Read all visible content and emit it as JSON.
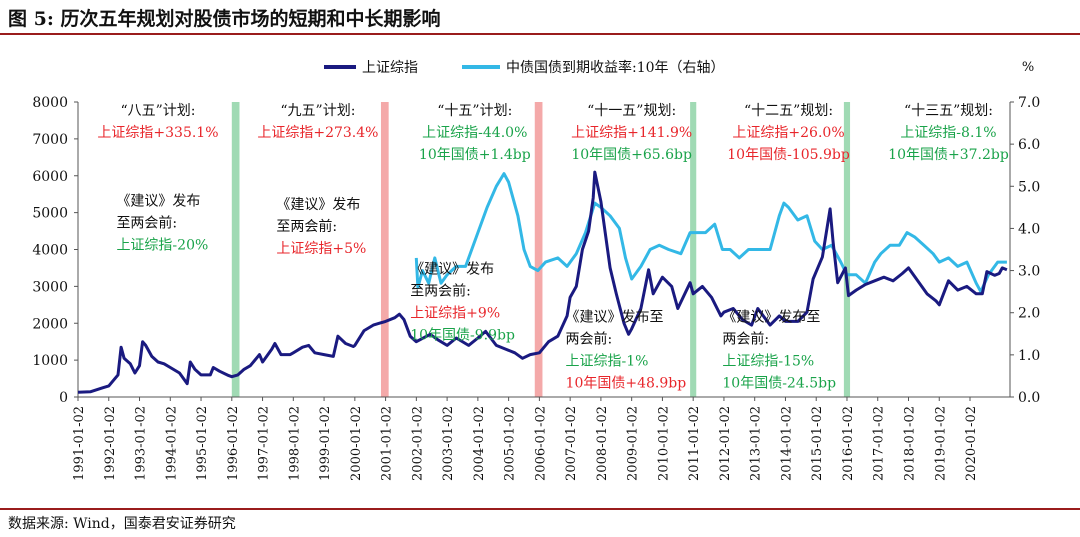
{
  "figure": {
    "title": "图 5:  历次五年规划对股债市场的短期和中长期影响",
    "source": "数据来源:  Wind，国泰君安证券研究"
  },
  "colors": {
    "sse": "#1a1a80",
    "bond": "#33b8e6",
    "band_green": "#8fd3a7",
    "band_red": "#f29a9a",
    "text_red": "#e8262b",
    "text_green": "#1aa34a",
    "text_dark": "#111111",
    "axis": "#555555",
    "rule": "#9a1c1c"
  },
  "chart_data": {
    "type": "line",
    "title": "历次五年规划对股债市场的短期和中长期影响",
    "legend": [
      "上证综指",
      "中债国债到期收益率:10年（右轴）"
    ],
    "legend_position": "top-center",
    "x_tick_labels": [
      "1991-01-02",
      "1992-01-02",
      "1993-01-02",
      "1994-01-02",
      "1995-01-02",
      "1996-01-02",
      "1997-01-02",
      "1998-01-02",
      "1999-01-02",
      "2000-01-02",
      "2001-01-02",
      "2002-01-02",
      "2003-01-02",
      "2004-01-02",
      "2005-01-02",
      "2006-01-02",
      "2007-01-02",
      "2008-01-02",
      "2009-01-02",
      "2010-01-02",
      "2011-01-02",
      "2012-01-02",
      "2013-01-02",
      "2014-01-02",
      "2015-01-02",
      "2016-01-02",
      "2017-01-02",
      "2018-01-02",
      "2019-01-02",
      "2020-01-02"
    ],
    "xlim": [
      1991.0,
      2021.3
    ],
    "y_left": {
      "lim": [
        0,
        8000
      ],
      "ticks": [
        "0",
        "1000",
        "2000",
        "3000",
        "4000",
        "5000",
        "6000",
        "7000",
        "8000"
      ]
    },
    "y_right": {
      "unit": "%",
      "lim": [
        0,
        7
      ],
      "ticks": [
        "0.0",
        "1.0",
        "2.0",
        "3.0",
        "4.0",
        "5.0",
        "6.0",
        "7.0"
      ]
    },
    "series": [
      {
        "name": "上证综指",
        "axis": "left",
        "points": [
          [
            1991.0,
            130
          ],
          [
            1991.4,
            140
          ],
          [
            1991.8,
            250
          ],
          [
            1992.0,
            300
          ],
          [
            1992.3,
            600
          ],
          [
            1992.4,
            1350
          ],
          [
            1992.5,
            1050
          ],
          [
            1992.7,
            900
          ],
          [
            1992.85,
            650
          ],
          [
            1993.0,
            850
          ],
          [
            1993.1,
            1500
          ],
          [
            1993.2,
            1400
          ],
          [
            1993.4,
            1100
          ],
          [
            1993.6,
            950
          ],
          [
            1993.8,
            900
          ],
          [
            1994.0,
            800
          ],
          [
            1994.3,
            650
          ],
          [
            1994.55,
            360
          ],
          [
            1994.65,
            950
          ],
          [
            1994.8,
            750
          ],
          [
            1995.0,
            600
          ],
          [
            1995.3,
            600
          ],
          [
            1995.4,
            800
          ],
          [
            1995.6,
            700
          ],
          [
            1995.9,
            580
          ],
          [
            1996.0,
            550
          ],
          [
            1996.2,
            600
          ],
          [
            1996.4,
            750
          ],
          [
            1996.6,
            850
          ],
          [
            1996.9,
            1150
          ],
          [
            1997.0,
            950
          ],
          [
            1997.3,
            1300
          ],
          [
            1997.4,
            1450
          ],
          [
            1997.6,
            1150
          ],
          [
            1997.9,
            1150
          ],
          [
            1998.0,
            1200
          ],
          [
            1998.3,
            1350
          ],
          [
            1998.5,
            1400
          ],
          [
            1998.7,
            1200
          ],
          [
            1999.0,
            1150
          ],
          [
            1999.3,
            1100
          ],
          [
            1999.45,
            1650
          ],
          [
            1999.7,
            1450
          ],
          [
            1999.95,
            1370
          ],
          [
            2000.0,
            1400
          ],
          [
            2000.3,
            1800
          ],
          [
            2000.6,
            1950
          ],
          [
            2001.0,
            2050
          ],
          [
            2001.3,
            2150
          ],
          [
            2001.45,
            2245
          ],
          [
            2001.6,
            2100
          ],
          [
            2001.8,
            1650
          ],
          [
            2002.0,
            1500
          ],
          [
            2002.45,
            1700
          ],
          [
            2002.7,
            1550
          ],
          [
            2003.0,
            1400
          ],
          [
            2003.3,
            1600
          ],
          [
            2003.7,
            1400
          ],
          [
            2004.0,
            1600
          ],
          [
            2004.25,
            1780
          ],
          [
            2004.6,
            1400
          ],
          [
            2004.9,
            1300
          ],
          [
            2005.2,
            1200
          ],
          [
            2005.45,
            1050
          ],
          [
            2005.7,
            1150
          ],
          [
            2006.0,
            1200
          ],
          [
            2006.3,
            1500
          ],
          [
            2006.6,
            1650
          ],
          [
            2006.9,
            2200
          ],
          [
            2007.0,
            2700
          ],
          [
            2007.2,
            3000
          ],
          [
            2007.4,
            4000
          ],
          [
            2007.6,
            4500
          ],
          [
            2007.75,
            5400
          ],
          [
            2007.8,
            6100
          ],
          [
            2008.0,
            5300
          ],
          [
            2008.3,
            3500
          ],
          [
            2008.5,
            2800
          ],
          [
            2008.75,
            2000
          ],
          [
            2008.9,
            1700
          ],
          [
            2009.0,
            1850
          ],
          [
            2009.3,
            2400
          ],
          [
            2009.55,
            3450
          ],
          [
            2009.7,
            2800
          ],
          [
            2010.0,
            3250
          ],
          [
            2010.3,
            3000
          ],
          [
            2010.5,
            2400
          ],
          [
            2010.9,
            3100
          ],
          [
            2011.0,
            2800
          ],
          [
            2011.3,
            3000
          ],
          [
            2011.6,
            2700
          ],
          [
            2011.9,
            2200
          ],
          [
            2012.0,
            2300
          ],
          [
            2012.3,
            2400
          ],
          [
            2012.6,
            2100
          ],
          [
            2012.9,
            1950
          ],
          [
            2013.1,
            2400
          ],
          [
            2013.5,
            1950
          ],
          [
            2013.8,
            2200
          ],
          [
            2014.0,
            2050
          ],
          [
            2014.4,
            2050
          ],
          [
            2014.7,
            2300
          ],
          [
            2014.9,
            3200
          ],
          [
            2015.2,
            3800
          ],
          [
            2015.45,
            5100
          ],
          [
            2015.55,
            4200
          ],
          [
            2015.7,
            3100
          ],
          [
            2015.95,
            3500
          ],
          [
            2016.05,
            2750
          ],
          [
            2016.3,
            2900
          ],
          [
            2016.6,
            3050
          ],
          [
            2016.9,
            3150
          ],
          [
            2017.2,
            3250
          ],
          [
            2017.5,
            3150
          ],
          [
            2017.8,
            3350
          ],
          [
            2018.0,
            3500
          ],
          [
            2018.3,
            3150
          ],
          [
            2018.6,
            2800
          ],
          [
            2018.9,
            2600
          ],
          [
            2019.0,
            2500
          ],
          [
            2019.3,
            3150
          ],
          [
            2019.6,
            2900
          ],
          [
            2019.9,
            3000
          ],
          [
            2020.2,
            2800
          ],
          [
            2020.4,
            2800
          ],
          [
            2020.55,
            3400
          ],
          [
            2020.8,
            3300
          ],
          [
            2020.95,
            3350
          ],
          [
            2021.05,
            3500
          ],
          [
            2021.2,
            3450
          ]
        ]
      },
      {
        "name": "中债国债到期收益率:10年（右轴）",
        "axis": "right",
        "points": [
          [
            2002.0,
            3.3
          ],
          [
            2002.05,
            2.6
          ],
          [
            2002.2,
            3.0
          ],
          [
            2002.4,
            2.7
          ],
          [
            2002.6,
            3.3
          ],
          [
            2002.8,
            2.7
          ],
          [
            2003.0,
            2.9
          ],
          [
            2003.3,
            3.1
          ],
          [
            2003.6,
            3.1
          ],
          [
            2003.9,
            3.7
          ],
          [
            2004.0,
            3.9
          ],
          [
            2004.3,
            4.5
          ],
          [
            2004.6,
            5.0
          ],
          [
            2004.85,
            5.3
          ],
          [
            2005.0,
            5.1
          ],
          [
            2005.3,
            4.3
          ],
          [
            2005.5,
            3.5
          ],
          [
            2005.7,
            3.1
          ],
          [
            2005.95,
            3.0
          ],
          [
            2006.2,
            3.2
          ],
          [
            2006.6,
            3.3
          ],
          [
            2006.9,
            3.1
          ],
          [
            2007.2,
            3.4
          ],
          [
            2007.5,
            3.9
          ],
          [
            2007.8,
            4.6
          ],
          [
            2008.0,
            4.5
          ],
          [
            2008.3,
            4.3
          ],
          [
            2008.6,
            4.0
          ],
          [
            2008.8,
            3.3
          ],
          [
            2009.0,
            2.8
          ],
          [
            2009.3,
            3.1
          ],
          [
            2009.6,
            3.5
          ],
          [
            2009.9,
            3.6
          ],
          [
            2010.2,
            3.5
          ],
          [
            2010.6,
            3.4
          ],
          [
            2010.9,
            3.9
          ],
          [
            2011.1,
            3.9
          ],
          [
            2011.4,
            3.9
          ],
          [
            2011.7,
            4.1
          ],
          [
            2011.95,
            3.5
          ],
          [
            2012.2,
            3.5
          ],
          [
            2012.5,
            3.3
          ],
          [
            2012.8,
            3.5
          ],
          [
            2013.1,
            3.5
          ],
          [
            2013.5,
            3.5
          ],
          [
            2013.8,
            4.3
          ],
          [
            2013.95,
            4.6
          ],
          [
            2014.1,
            4.5
          ],
          [
            2014.4,
            4.2
          ],
          [
            2014.7,
            4.3
          ],
          [
            2014.95,
            3.7
          ],
          [
            2015.2,
            3.5
          ],
          [
            2015.5,
            3.6
          ],
          [
            2015.8,
            3.2
          ],
          [
            2016.0,
            2.9
          ],
          [
            2016.3,
            2.9
          ],
          [
            2016.6,
            2.7
          ],
          [
            2016.9,
            3.2
          ],
          [
            2017.1,
            3.4
          ],
          [
            2017.4,
            3.6
          ],
          [
            2017.7,
            3.6
          ],
          [
            2017.95,
            3.9
          ],
          [
            2018.2,
            3.8
          ],
          [
            2018.5,
            3.6
          ],
          [
            2018.8,
            3.4
          ],
          [
            2019.0,
            3.2
          ],
          [
            2019.3,
            3.3
          ],
          [
            2019.6,
            3.1
          ],
          [
            2019.9,
            3.2
          ],
          [
            2020.2,
            2.7
          ],
          [
            2020.35,
            2.5
          ],
          [
            2020.6,
            2.9
          ],
          [
            2020.9,
            3.2
          ],
          [
            2021.2,
            3.2
          ]
        ]
      }
    ],
    "bands": [
      {
        "x": [
          1996.0,
          1996.25
        ],
        "color": "green"
      },
      {
        "x": [
          2000.85,
          2001.1
        ],
        "color": "red"
      },
      {
        "x": [
          2005.85,
          2006.1
        ],
        "color": "red"
      },
      {
        "x": [
          2010.9,
          2011.1
        ],
        "color": "green"
      },
      {
        "x": [
          2015.9,
          2016.1
        ],
        "color": "green"
      }
    ],
    "annotations": [
      {
        "anchor": [
          1993.6,
          7650
        ],
        "align": "center",
        "lines": [
          {
            "text": "“八五”计划:",
            "color": "dark"
          },
          {
            "text": "上证综指+335.1%",
            "color": "red"
          }
        ]
      },
      {
        "anchor": [
          1998.8,
          7650
        ],
        "align": "center",
        "lines": [
          {
            "text": "“九五”计划:",
            "color": "dark"
          },
          {
            "text": "上证综指+273.4%",
            "color": "red"
          }
        ]
      },
      {
        "anchor": [
          2003.9,
          7650
        ],
        "align": "center",
        "lines": [
          {
            "text": "“十五”计划:",
            "color": "dark"
          },
          {
            "text": "上证综指-44.0%",
            "color": "green"
          },
          {
            "text": "10年国债+1.4bp",
            "color": "green"
          }
        ]
      },
      {
        "anchor": [
          2009.0,
          7650
        ],
        "align": "center",
        "lines": [
          {
            "text": "“十一五”规划:",
            "color": "dark"
          },
          {
            "text": "上证综指+141.9%",
            "color": "red"
          },
          {
            "text": "10年国债+65.6bp",
            "color": "green"
          }
        ]
      },
      {
        "anchor": [
          2014.1,
          7650
        ],
        "align": "center",
        "lines": [
          {
            "text": "“十二五”规划:",
            "color": "dark"
          },
          {
            "text": "上证综指+26.0%",
            "color": "red"
          },
          {
            "text": "10年国债-105.9bp",
            "color": "red"
          }
        ]
      },
      {
        "anchor": [
          2019.3,
          7650
        ],
        "align": "center",
        "lines": [
          {
            "text": "“十三五”规划:",
            "color": "dark"
          },
          {
            "text": "上证综指-8.1%",
            "color": "green"
          },
          {
            "text": "10年国债+37.2bp",
            "color": "green"
          }
        ]
      },
      {
        "anchor": [
          1992.25,
          5200
        ],
        "align": "left",
        "lines": [
          {
            "text": "《建议》发布",
            "color": "dark"
          },
          {
            "text": "至两会前:",
            "color": "dark"
          },
          {
            "text": "上证综指-20%",
            "color": "green"
          }
        ]
      },
      {
        "anchor": [
          1997.45,
          5100
        ],
        "align": "left",
        "lines": [
          {
            "text": "《建议》发布",
            "color": "dark"
          },
          {
            "text": "至两会前:",
            "color": "dark"
          },
          {
            "text": "上证综指+5%",
            "color": "red"
          }
        ]
      },
      {
        "anchor": [
          2001.8,
          3350
        ],
        "align": "left",
        "lines": [
          {
            "text": "《建议》发布",
            "color": "dark"
          },
          {
            "text": "至两会前:",
            "color": "dark"
          },
          {
            "text": "上证综指+9%",
            "color": "red"
          },
          {
            "text": "10年国债-9.9bp",
            "color": "green"
          }
        ]
      },
      {
        "anchor": [
          2006.85,
          2050
        ],
        "align": "left",
        "lines": [
          {
            "text": "《建议》发布至",
            "color": "dark"
          },
          {
            "text": "两会前:",
            "color": "dark"
          },
          {
            "text": "上证综指-1%",
            "color": "green"
          },
          {
            "text": "10年国债+48.9bp",
            "color": "red"
          }
        ]
      },
      {
        "anchor": [
          2011.95,
          2050
        ],
        "align": "left",
        "lines": [
          {
            "text": "《建议》发布至",
            "color": "dark"
          },
          {
            "text": "两会前:",
            "color": "dark"
          },
          {
            "text": "上证综指-15%",
            "color": "green"
          },
          {
            "text": "10年国债-24.5bp",
            "color": "green"
          }
        ]
      }
    ]
  }
}
